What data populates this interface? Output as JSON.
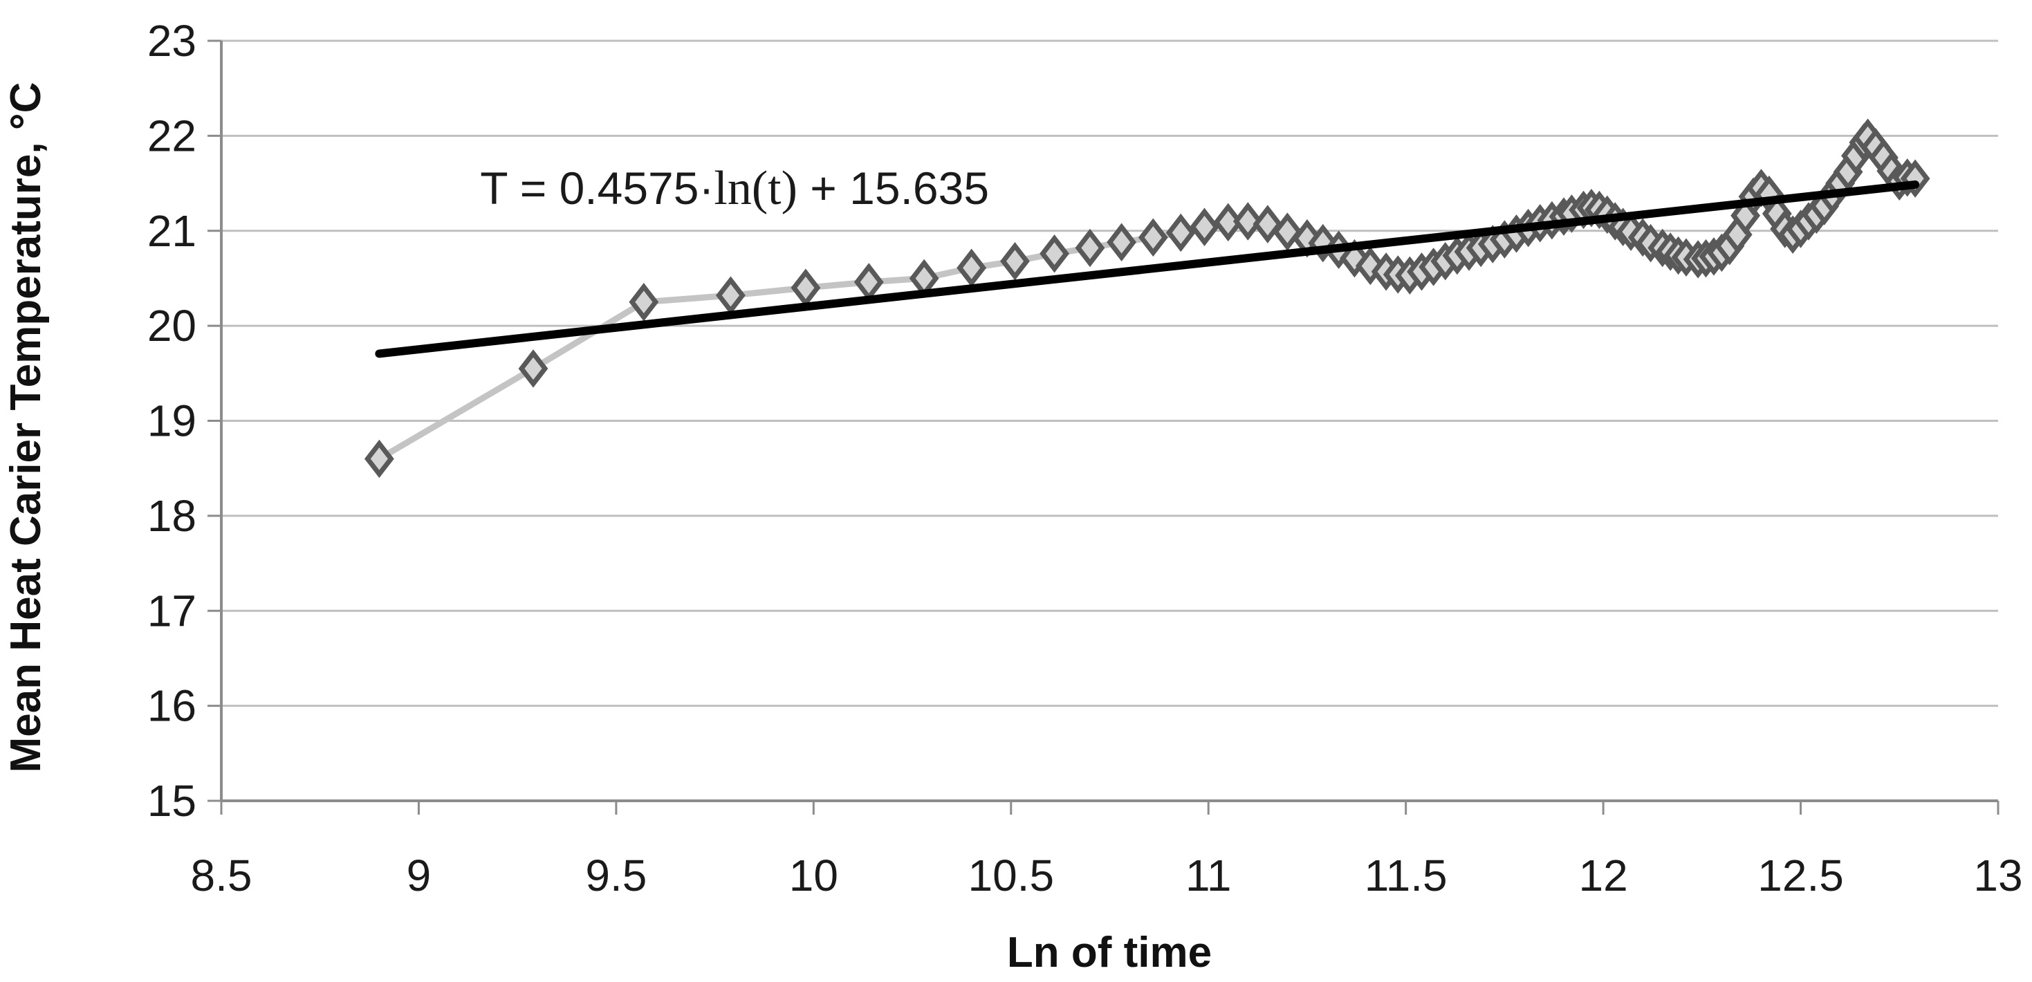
{
  "page": {
    "background": "#ffffff"
  },
  "chart_data": {
    "type": "line",
    "title": "",
    "xlabel": "Ln of time",
    "ylabel": "Mean Heat Carier Temperature, °C",
    "xlim": [
      8.5,
      13
    ],
    "ylim": [
      15,
      23
    ],
    "x_ticks": [
      8.5,
      9,
      9.5,
      10,
      10.5,
      11,
      11.5,
      12,
      12.5,
      13
    ],
    "x_tick_labels": [
      "8.5",
      "9",
      "9.5",
      "10",
      "10.5",
      "11",
      "11.5",
      "12",
      "12.5",
      "13"
    ],
    "y_ticks": [
      15,
      16,
      17,
      18,
      19,
      20,
      21,
      22,
      23
    ],
    "y_tick_labels": [
      "15",
      "16",
      "17",
      "18",
      "19",
      "20",
      "21",
      "22",
      "23"
    ],
    "grid": "horizontal",
    "legend": "none",
    "colors": {
      "gridline": "#BFBFBF",
      "axis": "#8C8C8C",
      "series_line": "#C4C4C4",
      "marker_stroke": "#595959",
      "marker_fill": "#D4D4D4",
      "trendline": "#000000",
      "text": "#1a1a1a"
    },
    "series": [
      {
        "name": "mean-heat-carrier-temperature",
        "marker": "diamond",
        "points": [
          [
            8.9,
            18.6
          ],
          [
            9.29,
            19.55
          ],
          [
            9.57,
            20.25
          ],
          [
            9.79,
            20.32
          ],
          [
            9.98,
            20.4
          ],
          [
            10.14,
            20.46
          ],
          [
            10.28,
            20.5
          ],
          [
            10.4,
            20.61
          ],
          [
            10.51,
            20.68
          ],
          [
            10.61,
            20.76
          ],
          [
            10.7,
            20.82
          ],
          [
            10.78,
            20.88
          ],
          [
            10.86,
            20.93
          ],
          [
            10.93,
            20.98
          ],
          [
            10.99,
            21.04
          ],
          [
            11.05,
            21.09
          ],
          [
            11.1,
            21.1
          ],
          [
            11.15,
            21.07
          ],
          [
            11.2,
            20.99
          ],
          [
            11.25,
            20.92
          ],
          [
            11.29,
            20.87
          ],
          [
            11.33,
            20.8
          ],
          [
            11.37,
            20.71
          ],
          [
            11.41,
            20.63
          ],
          [
            11.45,
            20.57
          ],
          [
            11.48,
            20.54
          ],
          [
            11.51,
            20.53
          ],
          [
            11.54,
            20.57
          ],
          [
            11.57,
            20.62
          ],
          [
            11.6,
            20.68
          ],
          [
            11.63,
            20.74
          ],
          [
            11.66,
            20.78
          ],
          [
            11.69,
            20.82
          ],
          [
            11.72,
            20.86
          ],
          [
            11.75,
            20.91
          ],
          [
            11.78,
            20.97
          ],
          [
            11.81,
            21.03
          ],
          [
            11.84,
            21.08
          ],
          [
            11.87,
            21.11
          ],
          [
            11.9,
            21.15
          ],
          [
            11.92,
            21.18
          ],
          [
            11.95,
            21.22
          ],
          [
            11.97,
            21.24
          ],
          [
            11.99,
            21.22
          ],
          [
            12.01,
            21.17
          ],
          [
            12.03,
            21.1
          ],
          [
            12.05,
            21.04
          ],
          [
            12.07,
            20.99
          ],
          [
            12.1,
            20.93
          ],
          [
            12.12,
            20.87
          ],
          [
            12.15,
            20.82
          ],
          [
            12.17,
            20.78
          ],
          [
            12.19,
            20.74
          ],
          [
            12.21,
            20.72
          ],
          [
            12.24,
            20.7
          ],
          [
            12.26,
            20.71
          ],
          [
            12.28,
            20.73
          ],
          [
            12.3,
            20.77
          ],
          [
            12.32,
            20.84
          ],
          [
            12.34,
            20.96
          ],
          [
            12.36,
            21.16
          ],
          [
            12.38,
            21.36
          ],
          [
            12.4,
            21.45
          ],
          [
            12.42,
            21.38
          ],
          [
            12.44,
            21.18
          ],
          [
            12.46,
            21.02
          ],
          [
            12.48,
            20.96
          ],
          [
            12.5,
            21.02
          ],
          [
            12.52,
            21.1
          ],
          [
            12.54,
            21.17
          ],
          [
            12.56,
            21.26
          ],
          [
            12.58,
            21.38
          ],
          [
            12.6,
            21.5
          ],
          [
            12.62,
            21.62
          ],
          [
            12.64,
            21.79
          ],
          [
            12.66,
            21.93
          ],
          [
            12.67,
            21.98
          ],
          [
            12.69,
            21.88
          ],
          [
            12.71,
            21.77
          ],
          [
            12.73,
            21.63
          ],
          [
            12.75,
            21.52
          ],
          [
            12.77,
            21.56
          ],
          [
            12.79,
            21.55
          ]
        ]
      }
    ],
    "trendline": {
      "type": "logarithmic",
      "slope": 0.4575,
      "intercept": 15.635,
      "x_start": 8.9,
      "x_end": 12.79,
      "equation": "T = 0.4575·ln(t) + 15.635"
    },
    "annotation": {
      "equation_prefix": "T = 0.4575·",
      "equation_ln": "ln(t)",
      "equation_suffix": " + 15.635",
      "x": 9.8,
      "y": 21.45
    }
  }
}
